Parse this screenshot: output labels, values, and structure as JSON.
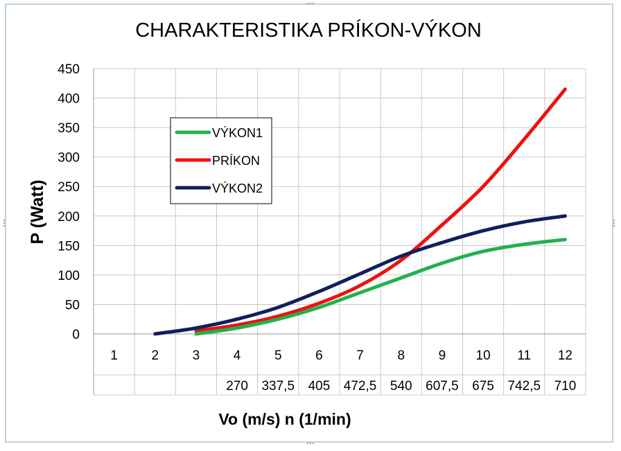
{
  "chart_data": {
    "type": "line",
    "title": "CHARAKTERISTIKA PRÍKON-VÝKON",
    "ylabel": "P (Watt)",
    "xlabel": "Vo (m/s)  n (1/min)",
    "ylim": [
      0,
      450
    ],
    "yticks": [
      0,
      50,
      100,
      150,
      200,
      250,
      300,
      350,
      400,
      450
    ],
    "categories": [
      "1",
      "2",
      "3",
      "4",
      "5",
      "6",
      "7",
      "8",
      "9",
      "10",
      "11",
      "12"
    ],
    "secondary_categories": [
      "",
      "",
      "",
      "270",
      "337,5",
      "405",
      "472,5",
      "540",
      "607,5",
      "675",
      "742,5",
      "710"
    ],
    "grid": true,
    "legend_position": "upper-left inside plot",
    "series": [
      {
        "name": "VÝKON1",
        "color": "#22b14c",
        "values": [
          null,
          null,
          0,
          10,
          25,
          45,
          70,
          95,
          120,
          140,
          152,
          160
        ]
      },
      {
        "name": "PRÍKON",
        "color": "#ee1111",
        "values": [
          null,
          null,
          5,
          15,
          30,
          52,
          82,
          125,
          185,
          250,
          330,
          415
        ]
      },
      {
        "name": "VÝKON2",
        "color": "#0f1f5c",
        "values": [
          null,
          0,
          10,
          25,
          45,
          72,
          102,
          132,
          155,
          175,
          190,
          200
        ]
      }
    ]
  }
}
